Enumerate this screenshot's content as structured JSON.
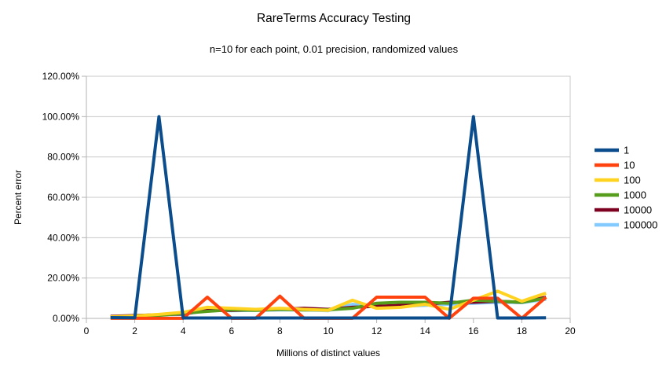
{
  "page": {
    "background_color": "#ffffff"
  },
  "chart_data": {
    "type": "line",
    "title": "RareTerms Accuracy Testing",
    "subtitle": "n=10 for each point, 0.01 precision, randomized values",
    "xlabel": "Millions of distinct values",
    "ylabel": "Percent error",
    "xlim": [
      0,
      20
    ],
    "ylim_percent": [
      0,
      120
    ],
    "x_ticks": [
      0,
      2,
      4,
      6,
      8,
      10,
      12,
      14,
      16,
      18,
      20
    ],
    "y_ticks_percent": [
      0,
      20,
      40,
      60,
      80,
      100,
      120
    ],
    "y_tick_labels": [
      "0.00%",
      "20.00%",
      "40.00%",
      "60.00%",
      "80.00%",
      "100.00%",
      "120.00%"
    ],
    "grid": "horizontal",
    "legend_position": "right",
    "x": [
      1,
      2,
      3,
      4,
      5,
      6,
      7,
      8,
      9,
      10,
      11,
      12,
      13,
      14,
      15,
      16,
      17,
      18,
      19
    ],
    "series": [
      {
        "name": "1",
        "color": "#0b4d8c",
        "values": [
          0.4,
          0.3,
          100,
          0.2,
          0.2,
          0.2,
          0.2,
          0.2,
          0.2,
          0.2,
          0.2,
          0.2,
          0.2,
          0.2,
          0.2,
          100,
          0.2,
          0.2,
          0.3
        ]
      },
      {
        "name": "10",
        "color": "#ff420e",
        "values": [
          0.05,
          0.05,
          0.05,
          0.05,
          10.5,
          0.05,
          0.05,
          11,
          0.05,
          0.05,
          0.05,
          10.5,
          10.5,
          10.5,
          0.05,
          10,
          10,
          0.05,
          10.5
        ]
      },
      {
        "name": "100",
        "color": "#ffd320",
        "values": [
          0.8,
          1.2,
          2,
          3,
          5.5,
          5,
          4.5,
          5,
          4.5,
          4,
          9,
          5,
          5.5,
          7,
          4.5,
          9,
          13.5,
          8.5,
          12.5
        ]
      },
      {
        "name": "1000",
        "color": "#579d1c",
        "values": [
          0.4,
          1,
          1.5,
          2.5,
          3.5,
          4.3,
          4,
          4.5,
          4.2,
          4.3,
          5,
          7.5,
          8,
          8,
          7.5,
          9,
          8.5,
          8,
          10
        ]
      },
      {
        "name": "10000",
        "color": "#7e0021",
        "values": [
          1,
          1.4,
          1.8,
          2.2,
          4,
          4,
          4.2,
          4.5,
          5,
          4.5,
          5.5,
          6,
          6.5,
          7,
          8,
          8,
          8.5,
          8,
          10.5
        ]
      },
      {
        "name": "100000",
        "color": "#83caff",
        "values": [
          0.6,
          1.5,
          1.7,
          2,
          4,
          3.8,
          4,
          4.2,
          4.2,
          3.8,
          7,
          5.5,
          6,
          6.5,
          7,
          7.5,
          8,
          7.8,
          9.5
        ]
      }
    ],
    "draw_order": [
      "100000",
      "10000",
      "1000",
      "100",
      "10",
      "1"
    ],
    "line_width": 4,
    "colors": {
      "grid": "#c8c8c8",
      "axis": "#b3b3b3",
      "text": "#000000"
    }
  }
}
